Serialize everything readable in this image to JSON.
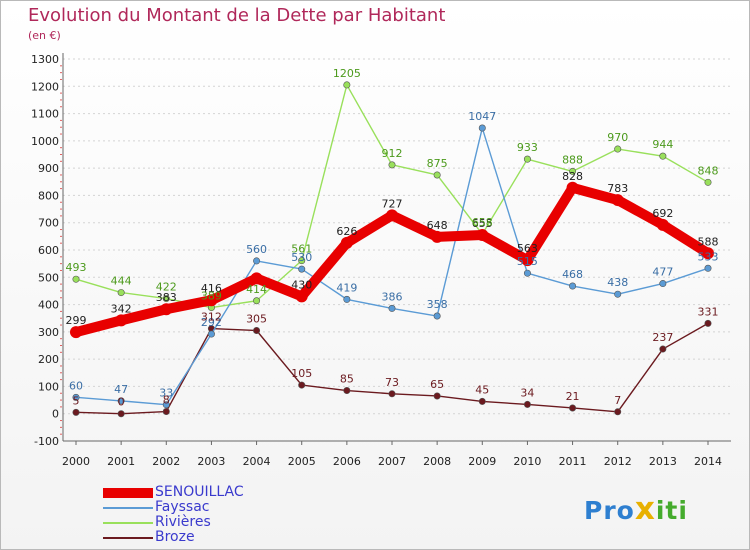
{
  "title": "Evolution du Montant de la Dette par Habitant",
  "subtitle": "(en €)",
  "chart_data": {
    "type": "line",
    "title": "Evolution du Montant de la Dette par Habitant",
    "ylabel": "(en €)",
    "xlabel": "",
    "x": [
      "2000",
      "2001",
      "2002",
      "2003",
      "2004",
      "2005",
      "2006",
      "2007",
      "2008",
      "2009",
      "2010",
      "2011",
      "2012",
      "2013",
      "2014"
    ],
    "ylim": [
      -100,
      1300
    ],
    "yticks": [
      -100,
      0,
      100,
      200,
      300,
      400,
      500,
      600,
      700,
      800,
      900,
      1000,
      1100,
      1200,
      1300
    ],
    "grid": "horizontal dashed",
    "legend": "bottom-left",
    "series": [
      {
        "name": "SENOUILLAC",
        "color": "#e80000",
        "values": [
          299,
          342,
          383,
          416,
          496,
          430,
          626,
          727,
          648,
          655,
          563,
          828,
          783,
          692,
          588
        ],
        "labels": [
          "299",
          "342",
          "383",
          "416",
          "",
          "430",
          "626",
          "727",
          "648",
          "655",
          "563",
          "828",
          "783",
          "692",
          "588"
        ]
      },
      {
        "name": "Fayssac",
        "color": "#5b9bd5",
        "values": [
          60,
          47,
          33,
          292,
          560,
          530,
          419,
          386,
          358,
          1047,
          515,
          468,
          438,
          477,
          533
        ],
        "labels": [
          "60",
          "47",
          "33",
          "292",
          "560",
          "530",
          "419",
          "386",
          "358",
          "1047",
          "515",
          "468",
          "438",
          "477",
          "533"
        ]
      },
      {
        "name": "Rivières",
        "color": "#99e05b",
        "values": [
          493,
          444,
          422,
          389,
          414,
          561,
          1205,
          912,
          875,
          658,
          933,
          888,
          970,
          944,
          848
        ],
        "labels": [
          "493",
          "444",
          "422",
          "389",
          "414",
          "561",
          "1205",
          "912",
          "875",
          "658",
          "933",
          "888",
          "970",
          "944",
          "848"
        ]
      },
      {
        "name": "Broze",
        "color": "#6b1a1f",
        "values": [
          5,
          0,
          8,
          312,
          305,
          105,
          85,
          73,
          65,
          45,
          34,
          21,
          7,
          237,
          331
        ],
        "labels": [
          "5",
          "0",
          "8",
          "312",
          "305",
          "105",
          "85",
          "73",
          "65",
          "45",
          "34",
          "21",
          "7",
          "237",
          "331"
        ]
      }
    ]
  },
  "legend_items": [
    "SENOUILLAC",
    "Fayssac",
    "Rivières",
    "Broze"
  ],
  "logo": {
    "p1": "Pro",
    "x": "x",
    "p2": "iti"
  }
}
